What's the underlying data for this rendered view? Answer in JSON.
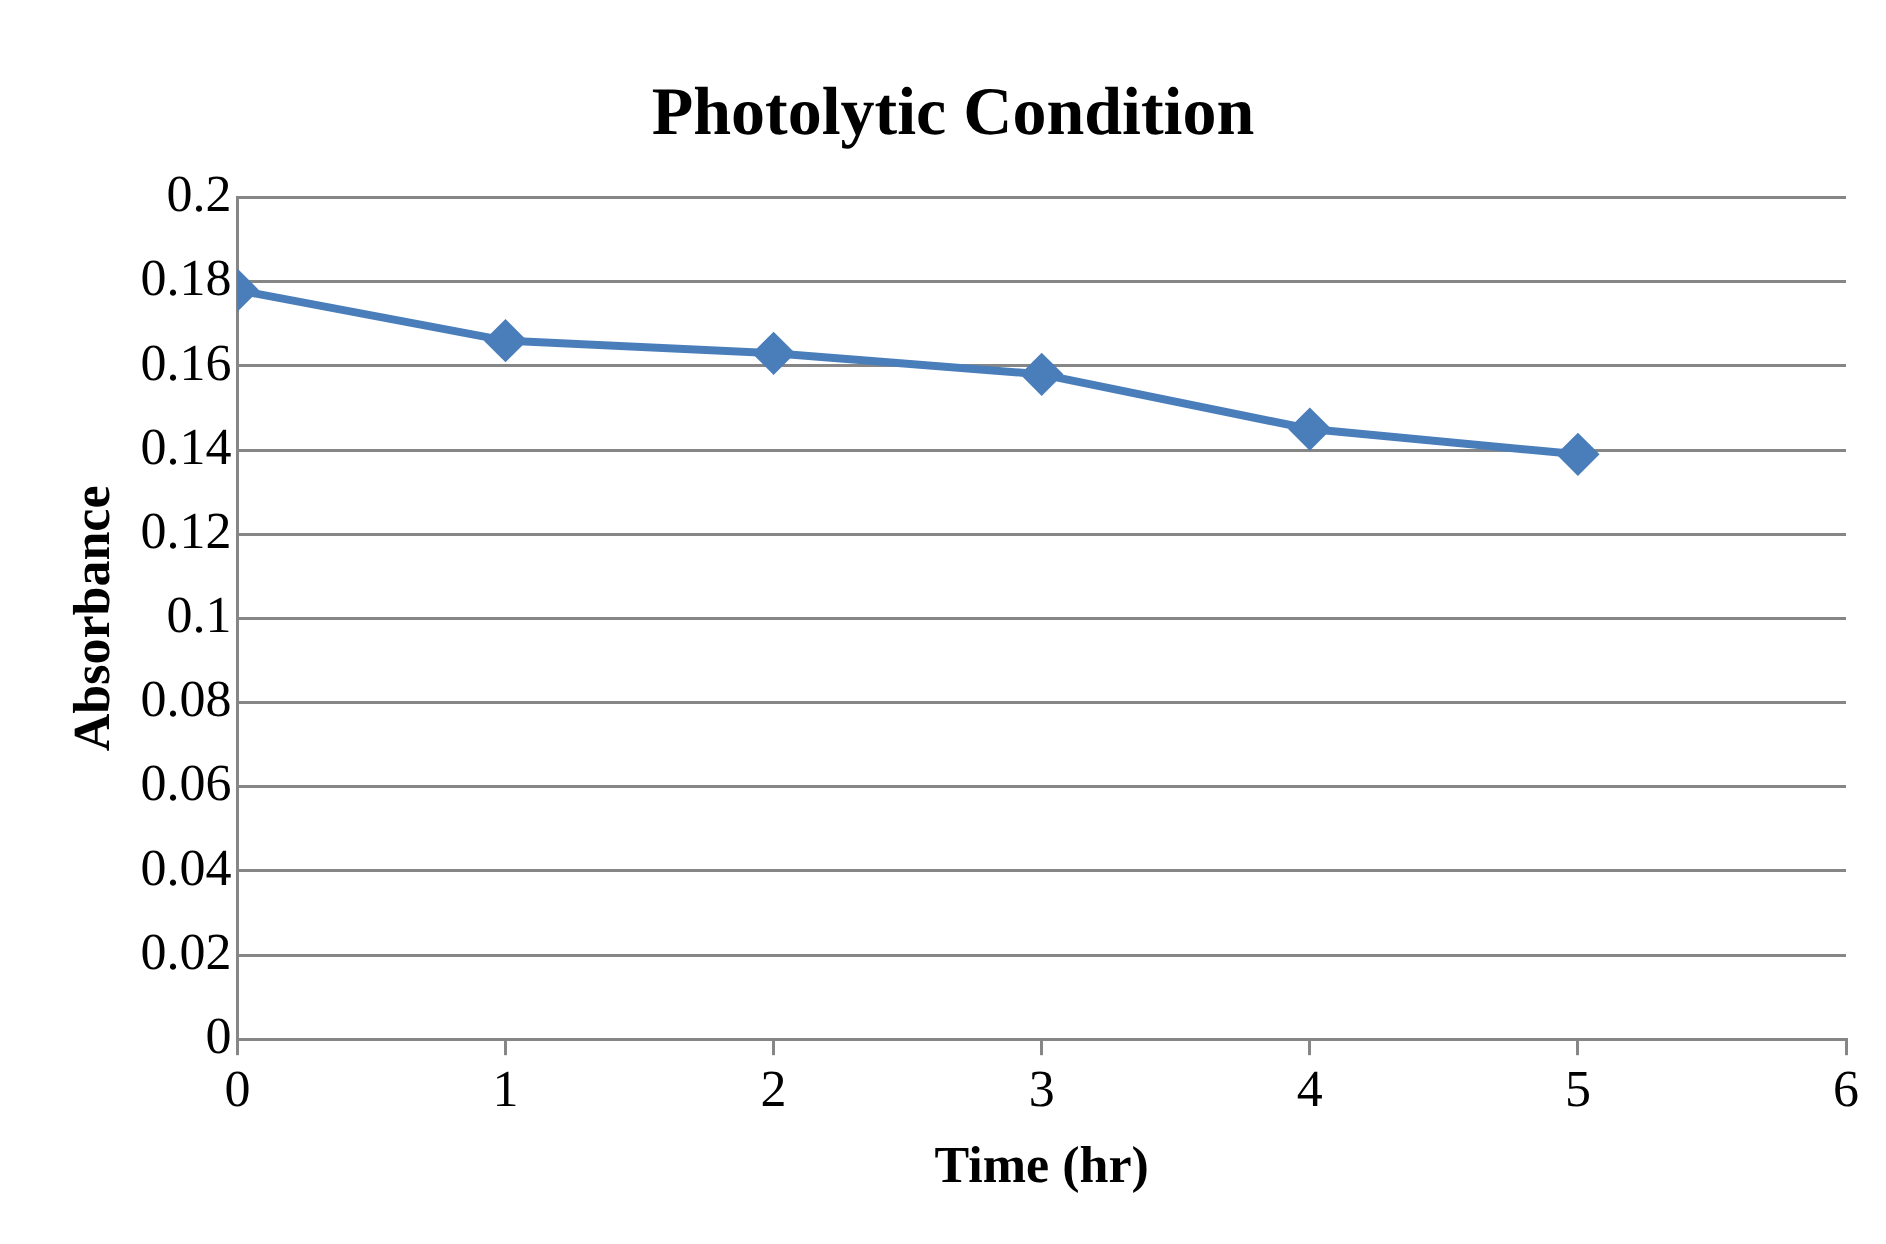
{
  "chart_data": {
    "type": "line",
    "title": "Photolytic Condition",
    "xlabel": "Time (hr)",
    "ylabel": "Absorbance",
    "x": [
      0,
      1,
      2,
      3,
      4,
      5
    ],
    "series": [
      {
        "color": "#4a7ebb",
        "values": [
          0.178,
          0.166,
          0.163,
          0.158,
          0.145,
          0.139
        ]
      }
    ],
    "xlim": [
      0,
      6
    ],
    "xticks": [
      0,
      1,
      2,
      3,
      4,
      5,
      6
    ],
    "ylim": [
      0,
      0.2
    ],
    "yticks": [
      0,
      0.02,
      0.04,
      0.06,
      0.08,
      0.1,
      0.12,
      0.14,
      0.16,
      0.18,
      0.2
    ],
    "grid": "y",
    "legend": false,
    "marker": "diamond",
    "line_style": "solid"
  }
}
